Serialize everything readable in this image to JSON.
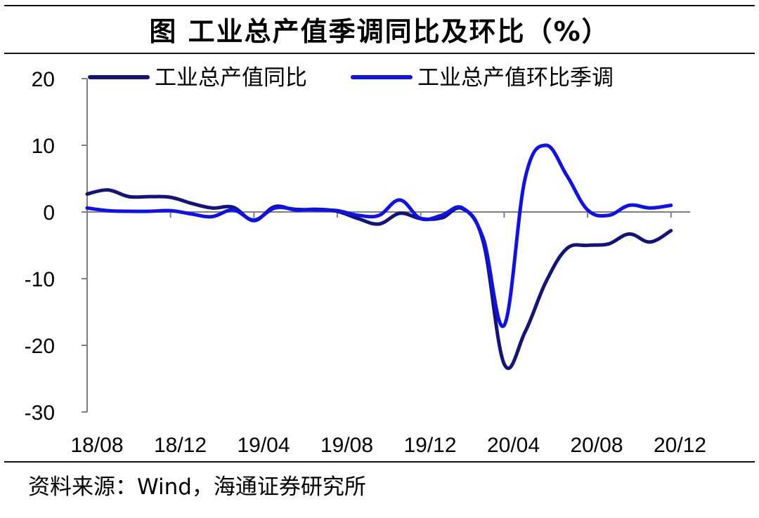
{
  "title": "图  工业总产值季调同比及环比（%）",
  "source": "资料来源：Wind，海通证券研究所",
  "colors": {
    "series_yoy": "#13137a",
    "series_mom": "#1010ee",
    "axis": "#7f7f7f",
    "rule": "#111111"
  },
  "chart_data": {
    "type": "line",
    "title": "工业总产值季调同比及环比（%）",
    "xlabel": "",
    "ylabel": "",
    "ylim": [
      -30,
      20
    ],
    "yticks": [
      20,
      10,
      0,
      -10,
      -20,
      -30
    ],
    "xticks": [
      "18/08",
      "18/12",
      "19/04",
      "19/08",
      "19/12",
      "20/04",
      "20/08",
      "20/12"
    ],
    "x": [
      "18/08",
      "18/09",
      "18/10",
      "18/11",
      "18/12",
      "19/01",
      "19/02",
      "19/03",
      "19/04",
      "19/05",
      "19/06",
      "19/07",
      "19/08",
      "19/09",
      "19/10",
      "19/11",
      "19/12",
      "20/01",
      "20/02",
      "20/03",
      "20/04",
      "20/05",
      "20/06",
      "20/07",
      "20/08",
      "20/09",
      "20/10",
      "20/11",
      "20/12",
      "21/01"
    ],
    "legend_position": "top",
    "grid": false,
    "series": [
      {
        "name": "工业总产值同比",
        "values": [
          2.7,
          3.3,
          2.3,
          2.3,
          2.2,
          1.3,
          0.6,
          0.7,
          -1.3,
          0.8,
          0.3,
          0.4,
          0.1,
          -1.0,
          -1.8,
          -0.2,
          -1.0,
          -0.9,
          0.5,
          -4.5,
          -22.8,
          -18.0,
          -10.5,
          -5.5,
          -5.0,
          -4.8,
          -3.3,
          -4.5,
          -2.8,
          null
        ]
      },
      {
        "name": "工业总产值环比季调",
        "values": [
          0.6,
          0.2,
          0.1,
          0.1,
          0.2,
          -0.3,
          -0.7,
          0.3,
          -1.2,
          0.6,
          0.4,
          0.3,
          0.2,
          -0.5,
          -0.5,
          1.8,
          -1.0,
          -0.5,
          0.6,
          -4.0,
          -17.0,
          5.0,
          10.0,
          5.5,
          0.3,
          -0.5,
          1.0,
          0.6,
          1.0,
          null
        ]
      }
    ]
  }
}
